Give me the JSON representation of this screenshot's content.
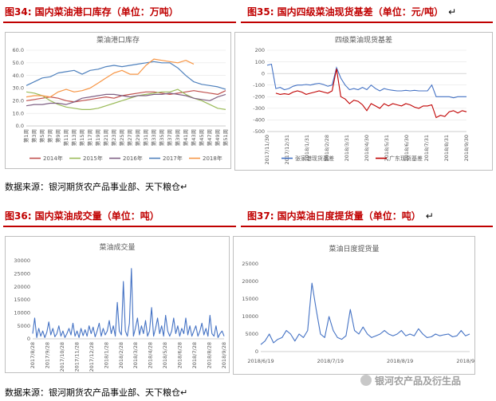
{
  "figures": {
    "fig34": {
      "title_red": "图34: 国内菜油港口库存",
      "title_black": "（单位：万吨）"
    },
    "fig35": {
      "title_red": "图35: 国内四级菜油现货基差",
      "title_black": "（单位：元/吨）",
      "mark": "↵"
    },
    "fig36": {
      "title_red": "图36: 国内菜油成交量",
      "title_black": "（单位：吨）"
    },
    "fig37": {
      "title_red": "图37: 国内菜油日度提货量",
      "title_black": "（单位：吨）",
      "mark": "↵"
    }
  },
  "sources": {
    "top": "数据来源：银河期货农产品事业部、天下粮仓↵",
    "bottom": "数据来源：银河期货农产品事业部、天下粮仓↵"
  },
  "watermark": {
    "text": "银河农产品及衍生品"
  },
  "chart_data": [
    {
      "id": "inventory",
      "type": "line",
      "title": "菜油港口库存",
      "x_tick_labels": [
        "第1周",
        "第3周",
        "第5周",
        "第7周",
        "第9周",
        "第11周",
        "第13周",
        "第15周",
        "第17周",
        "第19周",
        "第21周",
        "第23周",
        "第25周",
        "第27周",
        "第29周",
        "第31周",
        "第33周",
        "第35周",
        "第37周",
        "第39周",
        "第41周",
        "第43周",
        "第45周",
        "第47周",
        "第49周",
        "第51周"
      ],
      "ylim": [
        0,
        60
      ],
      "yticks": [
        "0.0",
        "10.0",
        "20.0",
        "30.0",
        "40.0",
        "50.0",
        "60.0"
      ],
      "series": [
        {
          "name": "2014年",
          "color": "#c0504d",
          "values": [
            20,
            21,
            22,
            23,
            22,
            20,
            19,
            20,
            21,
            22,
            23,
            22,
            24,
            25,
            26,
            27,
            27,
            26,
            25,
            26,
            27,
            28,
            27,
            26,
            25,
            28
          ]
        },
        {
          "name": "2015年",
          "color": "#9bbb59",
          "values": [
            27,
            26,
            24,
            20,
            17,
            15,
            14,
            13,
            13,
            14,
            16,
            18,
            20,
            22,
            24,
            25,
            26,
            27,
            27,
            29,
            25,
            22,
            20,
            17,
            14,
            13
          ]
        },
        {
          "name": "2016年",
          "color": "#7f6084",
          "values": [
            16,
            17,
            17,
            18,
            18,
            17,
            19,
            22,
            23,
            24,
            25,
            25,
            24,
            23,
            24,
            24,
            25,
            25,
            26,
            25,
            24,
            22,
            21,
            20,
            23,
            25
          ]
        },
        {
          "name": "2017年",
          "color": "#4f81bd",
          "values": [
            32,
            35,
            38,
            39,
            42,
            43,
            44,
            41,
            44,
            45,
            47,
            48,
            47,
            48,
            49,
            50,
            51,
            50,
            50,
            46,
            40,
            35,
            33,
            32,
            31,
            29
          ]
        },
        {
          "name": "2018年",
          "color": "#f79646",
          "values": [
            23,
            24,
            24,
            23,
            27,
            29,
            27,
            28,
            30,
            34,
            38,
            42,
            44,
            41,
            41,
            48,
            53,
            52,
            51,
            50,
            52,
            49,
            null,
            null,
            null,
            null
          ]
        }
      ]
    },
    {
      "id": "basis",
      "type": "line",
      "title": "四级菜油现货基差",
      "x_tick_labels": [
        "2017/11/30",
        "2017/12/31",
        "2018/1/31",
        "2018/2/28",
        "2018/3/31",
        "2018/4/30",
        "2018/5/31",
        "2018/6/30",
        "2018/7/31",
        "2018/8/31",
        "2018/9/30"
      ],
      "ylim": [
        -500,
        200
      ],
      "yticks": [
        "200",
        "100",
        "0",
        "-100",
        "-200",
        "-300",
        "-400",
        "-500"
      ],
      "series": [
        {
          "name": "张家港现货基差",
          "color": "#4472c4",
          "values": [
            70,
            80,
            -130,
            -120,
            -140,
            -130,
            -110,
            -100,
            -100,
            -95,
            -100,
            -90,
            -85,
            -95,
            -110,
            -100,
            50,
            -40,
            -100,
            -140,
            -130,
            -140,
            -120,
            -140,
            -100,
            -130,
            -150,
            -130,
            -140,
            -145,
            -150,
            -150,
            -145,
            -150,
            -145,
            -150,
            -150,
            -150,
            -100,
            -200,
            -200,
            -200,
            -200,
            -210,
            -200,
            -200,
            -200
          ]
        },
        {
          "name": "广东现货基差",
          "color": "#c00000",
          "values": [
            null,
            null,
            -170,
            -180,
            -175,
            -180,
            -160,
            -150,
            -160,
            -180,
            -170,
            -160,
            -150,
            -160,
            -170,
            -150,
            40,
            -200,
            -220,
            -260,
            -230,
            -240,
            -270,
            -320,
            -260,
            -280,
            -300,
            -260,
            -280,
            -260,
            -270,
            -280,
            -260,
            -270,
            -290,
            -300,
            -280,
            -280,
            -270,
            -380,
            -360,
            -370,
            -330,
            -320,
            -340,
            -320,
            -330
          ]
        }
      ]
    },
    {
      "id": "volume",
      "type": "line",
      "title": "菜油成交量",
      "x_tick_labels": [
        "2017/8/28",
        "2017/9/28",
        "2017/10/28",
        "2017/11/28",
        "2017/12/28",
        "2018/1/28",
        "2018/2/28",
        "2018/3/28",
        "2018/4/28",
        "2018/5/28",
        "2018/6/28",
        "2018/7/28",
        "2018/8/28",
        "2018/9/28"
      ],
      "ylim": [
        0,
        30000
      ],
      "yticks": [
        "0",
        "5000",
        "10000",
        "15000",
        "20000",
        "25000",
        "30000"
      ],
      "series": [
        {
          "name": "菜油成交量",
          "color": "#4472c4",
          "values": [
            2000,
            8000,
            500,
            4000,
            1000,
            3000,
            500,
            2500,
            6500,
            1500,
            4000,
            800,
            2000,
            5000,
            1000,
            3000,
            500,
            2000,
            4000,
            1500,
            6000,
            1000,
            3000,
            500,
            4000,
            1200,
            3500,
            1000,
            5000,
            2000,
            4500,
            800,
            3000,
            6000,
            1000,
            4000,
            1500,
            3000,
            7000,
            2000,
            5000,
            1000,
            14000,
            3000,
            1500,
            22000,
            3000,
            1000,
            6000,
            27000,
            1000,
            4000,
            8000,
            1500,
            5000,
            2000,
            7000,
            1000,
            3000,
            12000,
            1000,
            4000,
            8000,
            2000,
            5000,
            1000,
            9000,
            3000,
            1000,
            3000,
            8000,
            2000,
            5000,
            1000,
            4000,
            2000,
            8000,
            1500,
            5000,
            1000,
            3000,
            5000,
            1000,
            3000,
            6000,
            1500,
            4000,
            1000,
            9000,
            2000,
            1000,
            5000,
            500,
            2000,
            3000,
            1000
          ]
        }
      ]
    },
    {
      "id": "pickup",
      "type": "line",
      "title": "菜油日度提货量",
      "x_tick_labels": [
        "2018/6/19",
        "2018/7/19",
        "2018/8/19",
        "2018/9/19"
      ],
      "ylim": [
        0,
        25000
      ],
      "yticks": [
        "0",
        "5000",
        "10000",
        "15000",
        "20000",
        "25000"
      ],
      "series": [
        {
          "name": "菜油日度提货量",
          "color": "#4472c4",
          "values": [
            2000,
            3000,
            5000,
            2500,
            3500,
            4000,
            6000,
            5000,
            3000,
            5000,
            4000,
            6000,
            19500,
            12000,
            5000,
            4000,
            10000,
            6000,
            4000,
            3500,
            4500,
            12000,
            6000,
            5000,
            7000,
            5000,
            4000,
            4500,
            5000,
            6000,
            5000,
            4500,
            5000,
            6000,
            4500,
            5000,
            4500,
            6500,
            5000,
            4000,
            4200,
            5000,
            4500,
            4800,
            5000,
            4200,
            4500,
            6000,
            4500,
            5000
          ]
        }
      ]
    }
  ]
}
